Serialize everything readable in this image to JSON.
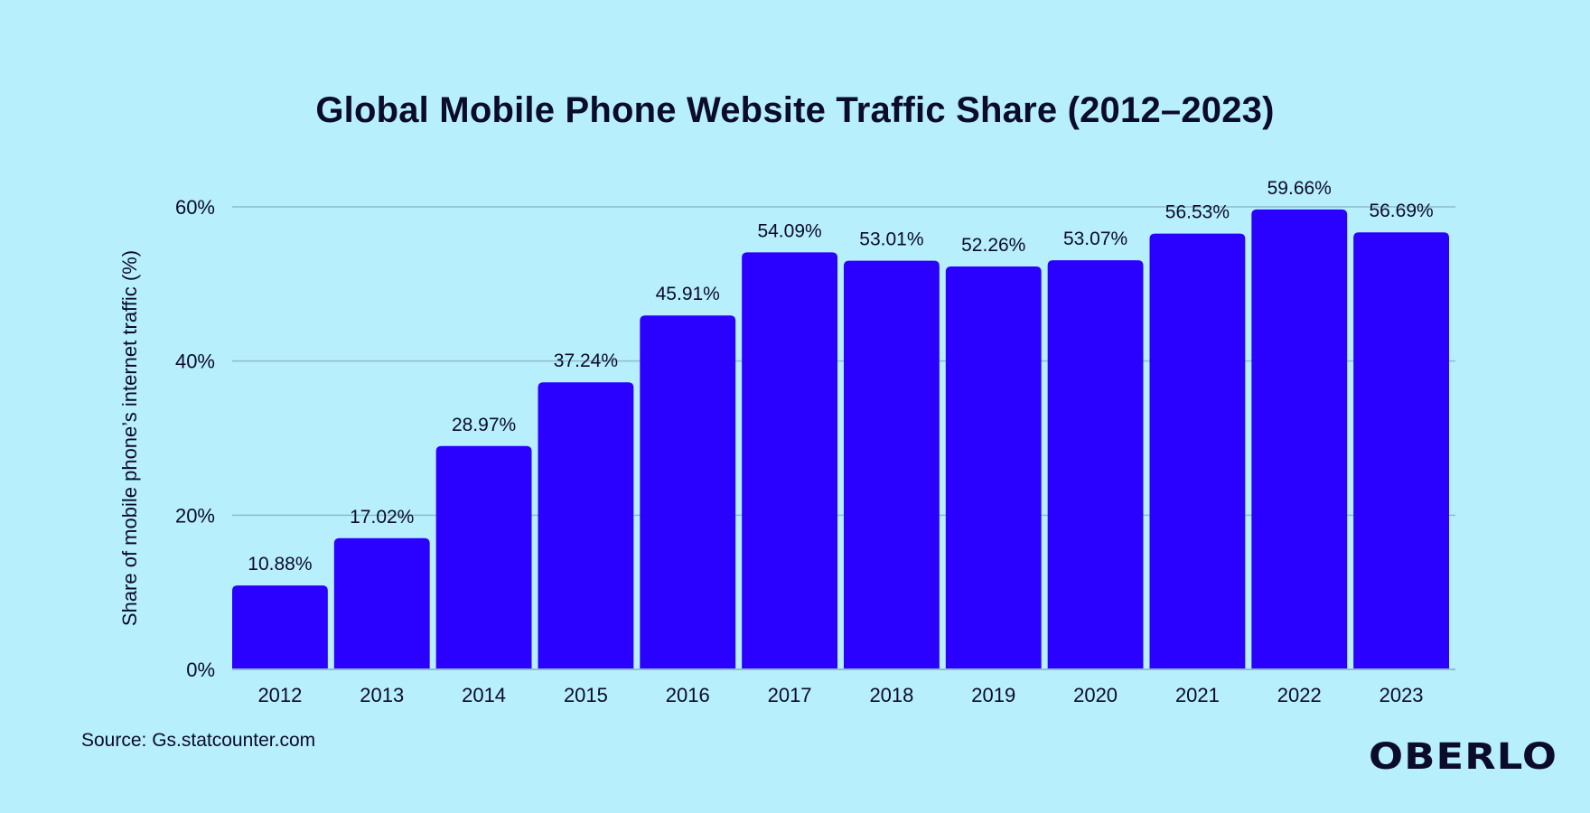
{
  "chart_data": {
    "type": "bar",
    "title": "Global Mobile Phone Website Traffic Share (2012–2023)",
    "xlabel": "",
    "ylabel": "Share of mobile phone’s internet traffic (%)",
    "categories": [
      "2012",
      "2013",
      "2014",
      "2015",
      "2016",
      "2017",
      "2018",
      "2019",
      "2020",
      "2021",
      "2022",
      "2023"
    ],
    "values": [
      10.88,
      17.02,
      28.97,
      37.24,
      45.91,
      54.09,
      53.01,
      52.26,
      53.07,
      56.53,
      59.66,
      56.69
    ],
    "data_labels": [
      "10.88%",
      "17.02%",
      "28.97%",
      "37.24%",
      "45.91%",
      "54.09%",
      "53.01%",
      "52.26%",
      "53.07%",
      "56.53%",
      "59.66%",
      "56.69%"
    ],
    "ylim": [
      0,
      60
    ],
    "yticks": [
      0,
      20,
      40,
      60
    ],
    "ytick_labels": [
      "0%",
      "20%",
      "40%",
      "60%"
    ],
    "grid": true,
    "legend": "none",
    "colors": {
      "bar": "#2a00ff",
      "background": "#b7effd",
      "text": "#0b0b2b",
      "grid": "#8fbccb"
    }
  },
  "footer": {
    "source": "Source: Gs.statcounter.com",
    "logo": "OBERLO"
  }
}
